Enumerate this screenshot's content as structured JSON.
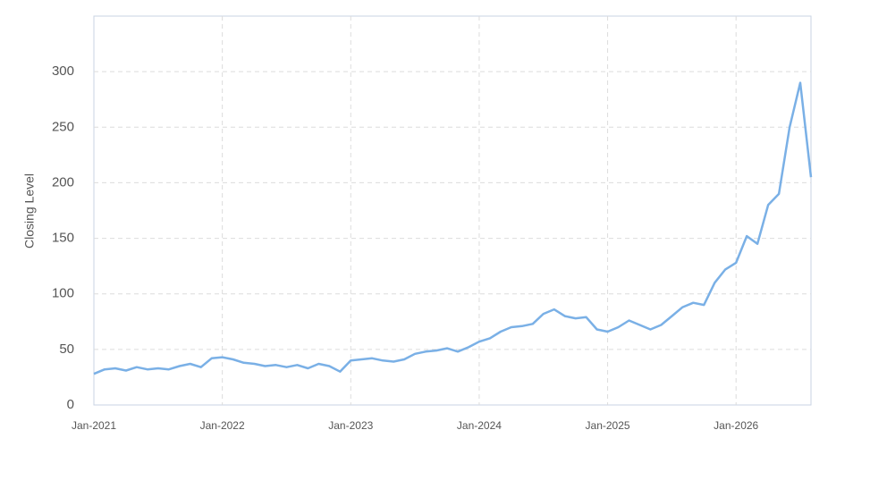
{
  "chart_data": {
    "type": "line",
    "y_label": "Closing Level",
    "x": [
      "2021-01",
      "2021-02",
      "2021-03",
      "2021-04",
      "2021-05",
      "2021-06",
      "2021-07",
      "2021-08",
      "2021-09",
      "2021-10",
      "2021-11",
      "2021-12",
      "2022-01",
      "2022-02",
      "2022-03",
      "2022-04",
      "2022-05",
      "2022-06",
      "2022-07",
      "2022-08",
      "2022-09",
      "2022-10",
      "2022-11",
      "2022-12",
      "2023-01",
      "2023-02",
      "2023-03",
      "2023-04",
      "2023-05",
      "2023-06",
      "2023-07",
      "2023-08",
      "2023-09",
      "2023-10",
      "2023-11",
      "2023-12",
      "2024-01",
      "2024-02",
      "2024-03",
      "2024-04",
      "2024-05",
      "2024-06",
      "2024-07",
      "2024-08",
      "2024-09",
      "2024-10",
      "2024-11",
      "2024-12",
      "2025-01",
      "2025-02",
      "2025-03",
      "2025-04",
      "2025-05",
      "2025-06",
      "2025-07",
      "2025-08",
      "2025-09",
      "2025-10",
      "2025-11",
      "2025-12",
      "2026-01",
      "2026-02",
      "2026-03",
      "2026-04",
      "2026-05",
      "2026-06",
      "2026-07",
      "2026-08"
    ],
    "values": [
      28,
      32,
      33,
      31,
      34,
      32,
      33,
      32,
      35,
      37,
      34,
      42,
      43,
      41,
      38,
      37,
      35,
      36,
      34,
      36,
      33,
      37,
      35,
      30,
      40,
      41,
      42,
      40,
      39,
      41,
      46,
      48,
      49,
      51,
      48,
      52,
      57,
      60,
      66,
      70,
      71,
      73,
      82,
      86,
      80,
      78,
      79,
      68,
      66,
      70,
      76,
      72,
      68,
      72,
      80,
      88,
      92,
      90,
      110,
      122,
      128,
      152,
      145,
      180,
      190,
      250,
      290,
      205
    ],
    "color": "#7ab0e6",
    "xlim": [
      "2021-01",
      "2026-08"
    ],
    "xticks": [
      {
        "value": "2021-01",
        "label": "Jan-2021"
      },
      {
        "value": "2022-01",
        "label": "Jan-2022"
      },
      {
        "value": "2023-01",
        "label": "Jan-2023"
      },
      {
        "value": "2024-01",
        "label": "Jan-2024"
      },
      {
        "value": "2025-01",
        "label": "Jan-2025"
      },
      {
        "value": "2026-01",
        "label": "Jan-2026"
      }
    ],
    "ylim": [
      0,
      350
    ],
    "yticks": [
      0,
      50,
      100,
      150,
      200,
      250,
      300
    ],
    "grid": true
  }
}
